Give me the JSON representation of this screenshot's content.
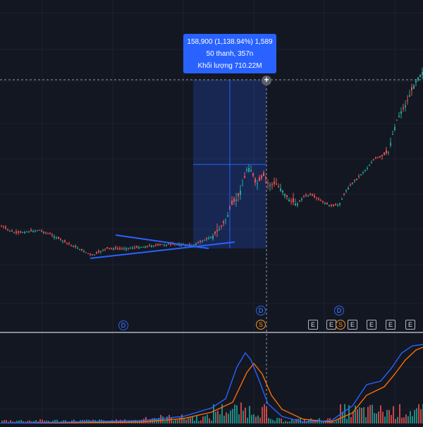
{
  "tooltip": {
    "line1": "158,900 (1,138.94%) 1,589",
    "line2": "50 thanh, 357n",
    "line3": "Khối lượng 710.22M"
  },
  "markers": {
    "dividend": "D",
    "split": "S",
    "earnings": "E"
  },
  "colors": {
    "background": "#131722",
    "up": "#26a69a",
    "down": "#ef5350",
    "measure": "#2962ff",
    "macd": "#2962ff",
    "signal": "#ff6d00"
  },
  "icons": {
    "zoom": "plus-circle-icon"
  },
  "chart_data": {
    "type": "candlestick",
    "grid": true,
    "panes": [
      "price",
      "macd"
    ]
  }
}
